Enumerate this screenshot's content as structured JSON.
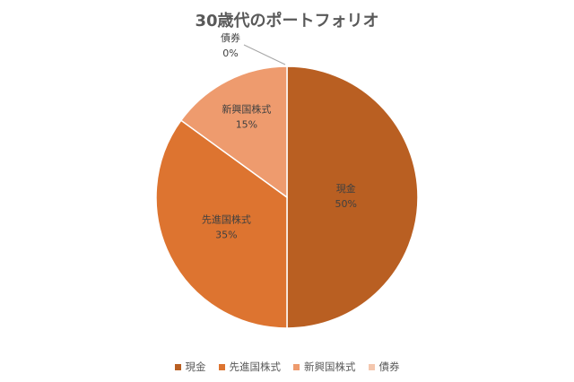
{
  "chart_data": {
    "type": "pie",
    "title": "30歳代のポートフォリオ",
    "categories": [
      "現金",
      "先進国株式",
      "新興国株式",
      "債券"
    ],
    "values": [
      50,
      35,
      15,
      0
    ],
    "data_labels": [
      "50%",
      "35%",
      "15%",
      "0%"
    ],
    "colors": [
      "#B95F22",
      "#DD7430",
      "#EE9B6E",
      "#F4C7AE"
    ],
    "start": "top",
    "direction": "clockwise",
    "legend_position": "bottom"
  }
}
